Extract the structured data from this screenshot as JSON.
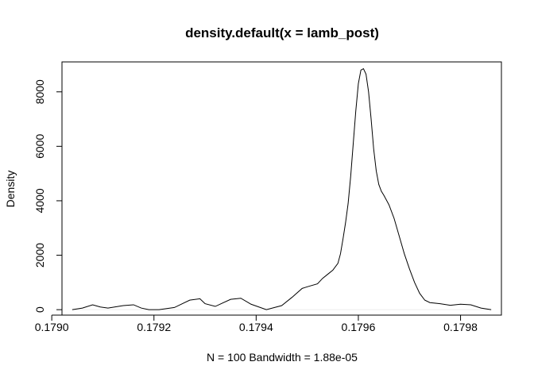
{
  "chart_data": {
    "type": "line",
    "title": "density.default(x = lamb_post)",
    "xlabel": "N = 100   Bandwidth = 1.88e-05",
    "ylabel": "Density",
    "xlim": [
      0.17902,
      0.17988
    ],
    "ylim": [
      -200,
      9100
    ],
    "x_ticks": [
      0.179,
      0.1792,
      0.1794,
      0.1796,
      0.1798
    ],
    "x_tick_labels": [
      "0.1790",
      "0.1792",
      "0.1794",
      "0.1796",
      "0.1798"
    ],
    "y_ticks": [
      0,
      2000,
      4000,
      6000,
      8000
    ],
    "y_tick_labels": [
      "0",
      "2000",
      "4000",
      "6000",
      "8000"
    ],
    "grid": false,
    "legend": "none",
    "series": [
      {
        "color": "#000000",
        "x": [
          0.17904,
          0.17906,
          0.17908,
          0.179095,
          0.17911,
          0.17914,
          0.17916,
          0.179175,
          0.17919,
          0.17921,
          0.17924,
          0.17927,
          0.17929,
          0.1793,
          0.17932,
          0.17935,
          0.17937,
          0.17939,
          0.17942,
          0.17945,
          0.17947,
          0.17949,
          0.1795,
          0.17952,
          0.17953,
          0.17954,
          0.17955,
          0.17956,
          0.179565,
          0.17957,
          0.179575,
          0.17958,
          0.179585,
          0.17959,
          0.179595,
          0.1796,
          0.179605,
          0.17961,
          0.179615,
          0.17962,
          0.179625,
          0.17963,
          0.179635,
          0.17964,
          0.179645,
          0.17965,
          0.17966,
          0.17967,
          0.17968,
          0.17969,
          0.1797,
          0.17971,
          0.17972,
          0.17973,
          0.17974,
          0.17976,
          0.17978,
          0.1798,
          0.17982,
          0.17984,
          0.17986
        ],
        "y": [
          0,
          60,
          180,
          100,
          60,
          150,
          180,
          60,
          0,
          0,
          80,
          350,
          400,
          220,
          120,
          380,
          420,
          200,
          0,
          150,
          450,
          780,
          840,
          950,
          1150,
          1300,
          1450,
          1700,
          2050,
          2600,
          3200,
          3900,
          4900,
          6100,
          7300,
          8300,
          8800,
          8850,
          8650,
          8000,
          7000,
          5900,
          5100,
          4600,
          4350,
          4200,
          3850,
          3350,
          2700,
          2050,
          1500,
          1000,
          600,
          350,
          260,
          220,
          160,
          200,
          180,
          60,
          0
        ]
      }
    ]
  }
}
